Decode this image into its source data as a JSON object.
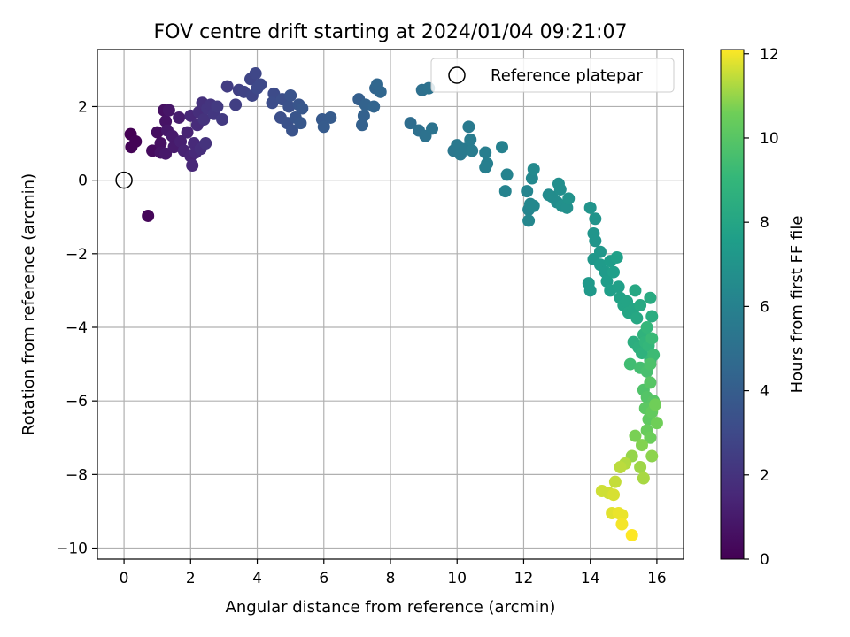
{
  "chart_data": {
    "type": "scatter",
    "title": "FOV centre drift starting at 2024/01/04 09:21:07",
    "xlabel": "Angular distance from reference (arcmin)",
    "ylabel": "Rotation from reference (arcmin)",
    "xlim": [
      -0.8,
      16.8
    ],
    "ylim": [
      -10.3,
      3.55
    ],
    "xticks": [
      0,
      2,
      4,
      6,
      8,
      10,
      12,
      14,
      16
    ],
    "yticks": [
      -10,
      -8,
      -6,
      -4,
      -2,
      0,
      2
    ],
    "grid": true,
    "legend": {
      "position": "top-right",
      "entries": [
        "Reference platepar"
      ]
    },
    "reference_point": {
      "name": "Reference platepar",
      "x": 0,
      "y": 0
    },
    "colorbar": {
      "label": "Hours from first FF file",
      "colormap": "viridis",
      "range": [
        0,
        12.1
      ],
      "ticks": [
        0,
        2,
        4,
        6,
        8,
        10,
        12
      ]
    },
    "series": [
      {
        "points": [
          [
            0.2,
            1.25,
            0.0
          ],
          [
            0.35,
            1.05,
            0.1
          ],
          [
            0.22,
            0.9,
            0.1
          ],
          [
            0.72,
            -0.97,
            0.2
          ],
          [
            0.85,
            0.8,
            0.4
          ],
          [
            1.0,
            1.3,
            0.5
          ],
          [
            1.1,
            1.0,
            0.6
          ],
          [
            1.2,
            1.9,
            0.6
          ],
          [
            1.25,
            1.6,
            0.7
          ],
          [
            1.1,
            0.75,
            0.7
          ],
          [
            1.35,
            1.9,
            0.8
          ],
          [
            1.3,
            1.35,
            0.9
          ],
          [
            1.25,
            0.72,
            0.9
          ],
          [
            1.45,
            1.2,
            1.0
          ],
          [
            1.5,
            0.9,
            1.0
          ],
          [
            1.65,
            1.7,
            1.1
          ],
          [
            1.7,
            1.05,
            1.2
          ],
          [
            1.8,
            0.8,
            1.3
          ],
          [
            1.9,
            1.3,
            1.3
          ],
          [
            2.0,
            0.65,
            1.4
          ],
          [
            2.0,
            1.75,
            1.5
          ],
          [
            2.05,
            0.4,
            1.5
          ],
          [
            2.1,
            1.0,
            1.6
          ],
          [
            2.15,
            0.75,
            1.6
          ],
          [
            2.2,
            1.5,
            1.7
          ],
          [
            2.25,
            1.85,
            1.8
          ],
          [
            2.3,
            0.85,
            1.8
          ],
          [
            2.35,
            2.1,
            1.9
          ],
          [
            2.4,
            1.65,
            2.0
          ],
          [
            2.45,
            1.0,
            2.0
          ],
          [
            2.5,
            1.95,
            2.1
          ],
          [
            2.6,
            2.05,
            2.1
          ],
          [
            2.7,
            1.8,
            2.2
          ],
          [
            2.8,
            2.0,
            2.3
          ],
          [
            2.95,
            1.65,
            2.3
          ],
          [
            3.1,
            2.55,
            2.4
          ],
          [
            3.35,
            2.05,
            2.5
          ],
          [
            3.45,
            2.45,
            2.6
          ],
          [
            3.6,
            2.4,
            2.7
          ],
          [
            3.8,
            2.75,
            2.8
          ],
          [
            3.85,
            2.3,
            2.8
          ],
          [
            3.95,
            2.9,
            2.9
          ],
          [
            4.0,
            2.5,
            3.0
          ],
          [
            4.1,
            2.6,
            3.0
          ],
          [
            4.5,
            2.35,
            3.1
          ],
          [
            4.45,
            2.1,
            3.2
          ],
          [
            4.7,
            1.7,
            3.3
          ],
          [
            4.75,
            2.2,
            3.3
          ],
          [
            4.9,
            1.55,
            3.4
          ],
          [
            4.95,
            2.0,
            3.4
          ],
          [
            5.0,
            2.3,
            3.5
          ],
          [
            5.05,
            1.35,
            3.5
          ],
          [
            5.15,
            1.7,
            3.6
          ],
          [
            5.25,
            2.05,
            3.6
          ],
          [
            5.3,
            1.55,
            3.7
          ],
          [
            5.35,
            1.95,
            3.7
          ],
          [
            5.95,
            1.65,
            3.8
          ],
          [
            6.0,
            1.45,
            3.9
          ],
          [
            6.2,
            1.7,
            3.9
          ],
          [
            7.05,
            2.2,
            4.1
          ],
          [
            7.15,
            1.5,
            4.2
          ],
          [
            7.2,
            1.75,
            4.2
          ],
          [
            7.25,
            2.05,
            4.3
          ],
          [
            7.5,
            2.0,
            4.4
          ],
          [
            7.55,
            2.5,
            4.4
          ],
          [
            7.6,
            2.6,
            4.5
          ],
          [
            7.7,
            2.4,
            4.5
          ],
          [
            8.6,
            1.55,
            4.8
          ],
          [
            8.85,
            1.35,
            5.0
          ],
          [
            8.95,
            2.45,
            5.0
          ],
          [
            9.05,
            1.2,
            5.1
          ],
          [
            9.15,
            2.5,
            5.1
          ],
          [
            9.25,
            1.4,
            5.2
          ],
          [
            9.9,
            0.8,
            5.4
          ],
          [
            10.0,
            0.95,
            5.5
          ],
          [
            10.1,
            0.7,
            5.5
          ],
          [
            10.25,
            0.85,
            5.6
          ],
          [
            10.35,
            1.45,
            5.6
          ],
          [
            10.4,
            1.1,
            5.7
          ],
          [
            10.45,
            0.8,
            5.7
          ],
          [
            10.85,
            0.75,
            5.8
          ],
          [
            10.9,
            0.45,
            5.9
          ],
          [
            10.85,
            0.35,
            5.9
          ],
          [
            11.35,
            0.9,
            6.0
          ],
          [
            11.45,
            -0.3,
            6.1
          ],
          [
            11.5,
            0.15,
            6.1
          ],
          [
            12.1,
            -0.3,
            6.2
          ],
          [
            12.15,
            -0.8,
            6.2
          ],
          [
            12.15,
            -1.1,
            6.3
          ],
          [
            12.2,
            -0.65,
            6.3
          ],
          [
            12.3,
            -0.7,
            6.4
          ],
          [
            12.25,
            0.05,
            6.4
          ],
          [
            12.3,
            0.3,
            6.5
          ],
          [
            12.75,
            -0.4,
            6.5
          ],
          [
            12.85,
            -0.45,
            6.6
          ],
          [
            13.0,
            -0.6,
            6.6
          ],
          [
            13.05,
            -0.1,
            6.7
          ],
          [
            13.1,
            -0.25,
            6.7
          ],
          [
            13.15,
            -0.7,
            6.8
          ],
          [
            13.3,
            -0.75,
            6.8
          ],
          [
            13.35,
            -0.5,
            6.9
          ],
          [
            14.0,
            -0.75,
            7.0
          ],
          [
            14.15,
            -1.05,
            7.0
          ],
          [
            14.1,
            -1.45,
            7.1
          ],
          [
            14.15,
            -1.65,
            7.1
          ],
          [
            14.1,
            -2.15,
            7.2
          ],
          [
            14.3,
            -1.95,
            7.2
          ],
          [
            13.95,
            -2.8,
            7.3
          ],
          [
            14.0,
            -3.0,
            7.3
          ],
          [
            14.3,
            -2.3,
            7.4
          ],
          [
            14.45,
            -2.5,
            7.4
          ],
          [
            14.5,
            -2.75,
            7.5
          ],
          [
            14.6,
            -2.2,
            7.5
          ],
          [
            14.6,
            -3.0,
            7.6
          ],
          [
            14.7,
            -2.5,
            7.6
          ],
          [
            14.8,
            -2.1,
            7.7
          ],
          [
            14.85,
            -2.9,
            7.7
          ],
          [
            14.9,
            -3.2,
            7.8
          ],
          [
            15.0,
            -3.4,
            7.9
          ],
          [
            15.1,
            -3.3,
            7.9
          ],
          [
            15.15,
            -3.6,
            8.0
          ],
          [
            15.3,
            -3.5,
            8.0
          ],
          [
            15.35,
            -3.0,
            8.1
          ],
          [
            15.4,
            -3.75,
            8.1
          ],
          [
            15.5,
            -3.4,
            8.2
          ],
          [
            15.8,
            -3.2,
            8.3
          ],
          [
            15.85,
            -3.7,
            8.4
          ],
          [
            15.3,
            -4.4,
            8.5
          ],
          [
            15.45,
            -4.55,
            8.6
          ],
          [
            15.55,
            -4.7,
            8.7
          ],
          [
            15.6,
            -4.2,
            8.8
          ],
          [
            15.65,
            -4.4,
            8.9
          ],
          [
            15.7,
            -4.0,
            9.0
          ],
          [
            15.75,
            -4.5,
            9.0
          ],
          [
            15.8,
            -4.9,
            9.1
          ],
          [
            15.85,
            -4.3,
            9.2
          ],
          [
            15.9,
            -4.75,
            9.3
          ],
          [
            15.2,
            -5.0,
            9.4
          ],
          [
            15.5,
            -5.1,
            9.5
          ],
          [
            15.7,
            -5.2,
            9.6
          ],
          [
            15.8,
            -5.0,
            9.7
          ],
          [
            15.6,
            -5.7,
            9.8
          ],
          [
            15.7,
            -5.9,
            9.9
          ],
          [
            15.8,
            -5.5,
            10.0
          ],
          [
            15.9,
            -6.0,
            10.0
          ],
          [
            15.65,
            -6.2,
            10.1
          ],
          [
            15.75,
            -6.5,
            10.2
          ],
          [
            15.85,
            -6.3,
            10.3
          ],
          [
            15.7,
            -6.8,
            10.4
          ],
          [
            15.8,
            -7.0,
            10.5
          ],
          [
            16.0,
            -6.6,
            10.6
          ],
          [
            15.95,
            -6.1,
            10.6
          ],
          [
            15.35,
            -6.95,
            10.7
          ],
          [
            15.55,
            -7.2,
            10.8
          ],
          [
            15.85,
            -7.5,
            10.9
          ],
          [
            15.25,
            -7.5,
            11.0
          ],
          [
            15.5,
            -7.8,
            11.1
          ],
          [
            15.6,
            -8.1,
            11.2
          ],
          [
            15.05,
            -7.7,
            11.3
          ],
          [
            14.9,
            -7.8,
            11.4
          ],
          [
            14.75,
            -8.2,
            11.5
          ],
          [
            14.55,
            -8.5,
            11.6
          ],
          [
            14.35,
            -8.45,
            11.6
          ],
          [
            14.7,
            -8.55,
            11.7
          ],
          [
            14.65,
            -9.05,
            11.8
          ],
          [
            14.85,
            -9.05,
            11.9
          ],
          [
            14.95,
            -9.1,
            11.9
          ],
          [
            14.95,
            -9.35,
            12.0
          ],
          [
            15.25,
            -9.65,
            12.1
          ]
        ]
      }
    ]
  }
}
